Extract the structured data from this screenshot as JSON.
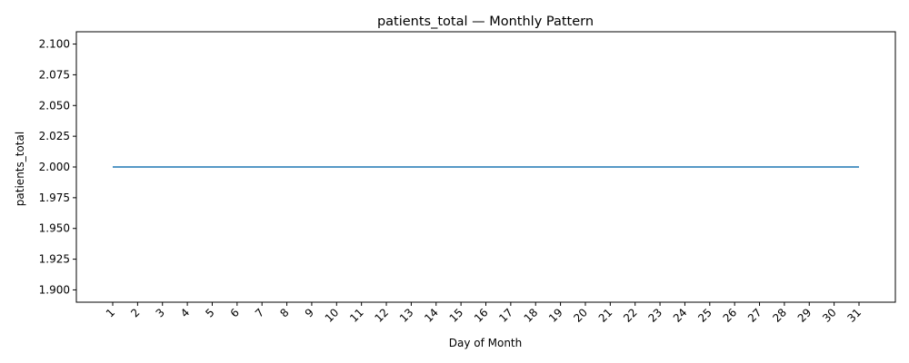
{
  "chart_data": {
    "type": "line",
    "title": "patients_total — Monthly Pattern",
    "xlabel": "Day of Month",
    "ylabel": "patients_total",
    "categories": [
      "1",
      "2",
      "3",
      "4",
      "5",
      "6",
      "7",
      "8",
      "9",
      "10",
      "11",
      "12",
      "13",
      "14",
      "15",
      "16",
      "17",
      "18",
      "19",
      "20",
      "21",
      "22",
      "23",
      "24",
      "25",
      "26",
      "27",
      "28",
      "29",
      "30",
      "31"
    ],
    "series": [
      {
        "name": "patients_total",
        "color": "#1f77b4",
        "values": [
          2,
          2,
          2,
          2,
          2,
          2,
          2,
          2,
          2,
          2,
          2,
          2,
          2,
          2,
          2,
          2,
          2,
          2,
          2,
          2,
          2,
          2,
          2,
          2,
          2,
          2,
          2,
          2,
          2,
          2,
          2
        ]
      }
    ],
    "yticks": [
      "1.900",
      "1.925",
      "1.950",
      "1.975",
      "2.000",
      "2.025",
      "2.050",
      "2.075",
      "2.100"
    ],
    "ylim": [
      1.89,
      2.11
    ],
    "grid": false,
    "legend": "none"
  }
}
